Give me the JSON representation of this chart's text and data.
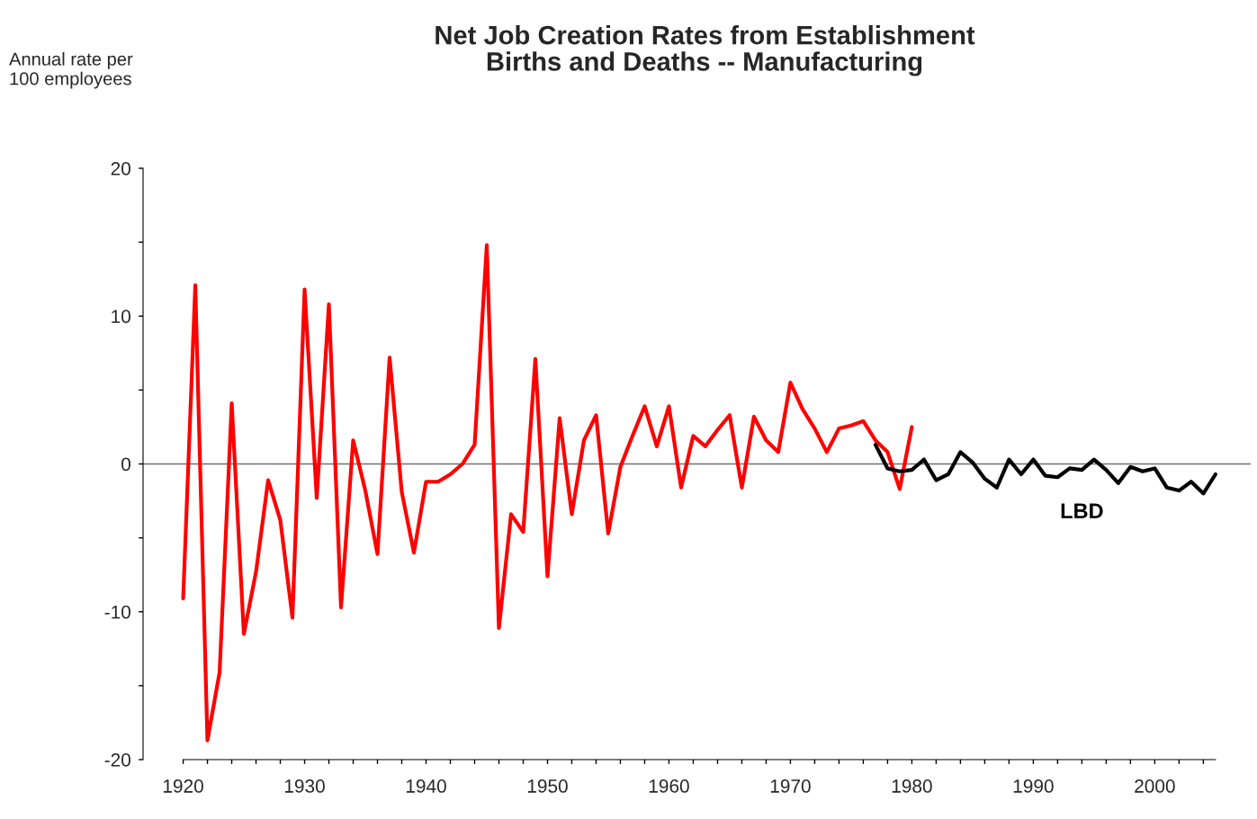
{
  "chart_data": {
    "type": "line",
    "title": "Net Job Creation Rates from Establishment\nBirths and Deaths -- Manufacturing",
    "ylabel": "Annual rate per\n100 employees",
    "series": [
      {
        "color": "#ff0000",
        "x": [
          1920,
          1921,
          1922,
          1923,
          1924,
          1925,
          1926,
          1927,
          1928,
          1929,
          1930,
          1931,
          1932,
          1933,
          1934,
          1935,
          1936,
          1937,
          1938,
          1939,
          1940,
          1941,
          1942,
          1943,
          1944,
          1945,
          1946,
          1947,
          1948,
          1949,
          1950,
          1951,
          1952,
          1953,
          1954,
          1955,
          1956,
          1957,
          1958,
          1959,
          1960,
          1961,
          1962,
          1963,
          1964,
          1965,
          1966,
          1967,
          1968,
          1969,
          1970,
          1971,
          1972,
          1973,
          1974,
          1975,
          1976,
          1977,
          1978,
          1979,
          1980
        ],
        "values": [
          -9.1,
          12.1,
          -18.7,
          -14.1,
          4.1,
          -11.5,
          -7.3,
          -1.1,
          -3.8,
          -10.4,
          11.8,
          -2.3,
          10.8,
          -9.7,
          1.6,
          -1.8,
          -6.1,
          7.2,
          -1.9,
          -6.0,
          -1.2,
          -1.2,
          -0.7,
          0.0,
          1.3,
          14.8,
          -11.1,
          -3.4,
          -4.6,
          7.1,
          -7.6,
          3.1,
          -3.4,
          1.6,
          3.3,
          -4.7,
          -0.2,
          1.9,
          3.9,
          1.2,
          3.9,
          -1.6,
          1.9,
          1.2,
          2.3,
          3.3,
          -1.6,
          3.2,
          1.6,
          0.8,
          5.5,
          3.7,
          2.4,
          0.8,
          2.4,
          2.6,
          2.9,
          1.6,
          0.8,
          -1.7,
          2.5
        ]
      },
      {
        "name": "LBD",
        "color": "#000000",
        "x": [
          1977,
          1978,
          1979,
          1980,
          1981,
          1982,
          1983,
          1984,
          1985,
          1986,
          1987,
          1988,
          1989,
          1990,
          1991,
          1992,
          1993,
          1994,
          1995,
          1996,
          1997,
          1998,
          1999,
          2000,
          2001,
          2002,
          2003,
          2004,
          2005
        ],
        "values": [
          1.3,
          -0.3,
          -0.5,
          -0.4,
          0.3,
          -1.1,
          -0.7,
          0.8,
          0.1,
          -1.0,
          -1.6,
          0.3,
          -0.7,
          0.3,
          -0.8,
          -0.9,
          -0.3,
          -0.4,
          0.3,
          -0.4,
          -1.3,
          -0.2,
          -0.5,
          -0.3,
          -1.6,
          -1.8,
          -1.2,
          -2.0,
          -0.7
        ]
      }
    ],
    "xlim": [
      1916.7,
      2007.9
    ],
    "ylim": [
      -20,
      20
    ],
    "xticks": [
      1920,
      {
        "value": 1922,
        "label": null
      },
      {
        "value": 1924,
        "label": null
      },
      {
        "value": 1926,
        "label": null
      },
      {
        "value": 1928,
        "label": null
      },
      1930,
      {
        "value": 1932,
        "label": null
      },
      {
        "value": 1934,
        "label": null
      },
      {
        "value": 1936,
        "label": null
      },
      {
        "value": 1938,
        "label": null
      },
      1940,
      {
        "value": 1942,
        "label": null
      },
      {
        "value": 1944,
        "label": null
      },
      {
        "value": 1946,
        "label": null
      },
      {
        "value": 1948,
        "label": null
      },
      1950,
      {
        "value": 1952,
        "label": null
      },
      {
        "value": 1954,
        "label": null
      },
      {
        "value": 1956,
        "label": null
      },
      {
        "value": 1958,
        "label": null
      },
      1960,
      {
        "value": 1962,
        "label": null
      },
      {
        "value": 1964,
        "label": null
      },
      {
        "value": 1966,
        "label": null
      },
      {
        "value": 1968,
        "label": null
      },
      1970,
      {
        "value": 1972,
        "label": null
      },
      {
        "value": 1974,
        "label": null
      },
      {
        "value": 1976,
        "label": null
      },
      {
        "value": 1978,
        "label": null
      },
      1980,
      {
        "value": 1982,
        "label": null
      },
      {
        "value": 1984,
        "label": null
      },
      {
        "value": 1986,
        "label": null
      },
      {
        "value": 1988,
        "label": null
      },
      1990,
      {
        "value": 1992,
        "label": null
      },
      {
        "value": 1994,
        "label": null
      },
      {
        "value": 1996,
        "label": null
      },
      {
        "value": 1998,
        "label": null
      },
      2000,
      {
        "value": 2002,
        "label": null
      },
      {
        "value": 2004,
        "label": null
      }
    ],
    "yticks": [
      -20,
      {
        "value": -15,
        "label": null
      },
      -10,
      {
        "value": -5,
        "label": null
      },
      0,
      {
        "value": 5,
        "label": null
      },
      10,
      {
        "value": 15,
        "label": null
      },
      20
    ],
    "ref_lines": [
      {
        "axis": "y",
        "value": 0,
        "color": "#707070"
      }
    ],
    "grid": false,
    "legend": false,
    "line_style": "solid",
    "marker": "none"
  }
}
